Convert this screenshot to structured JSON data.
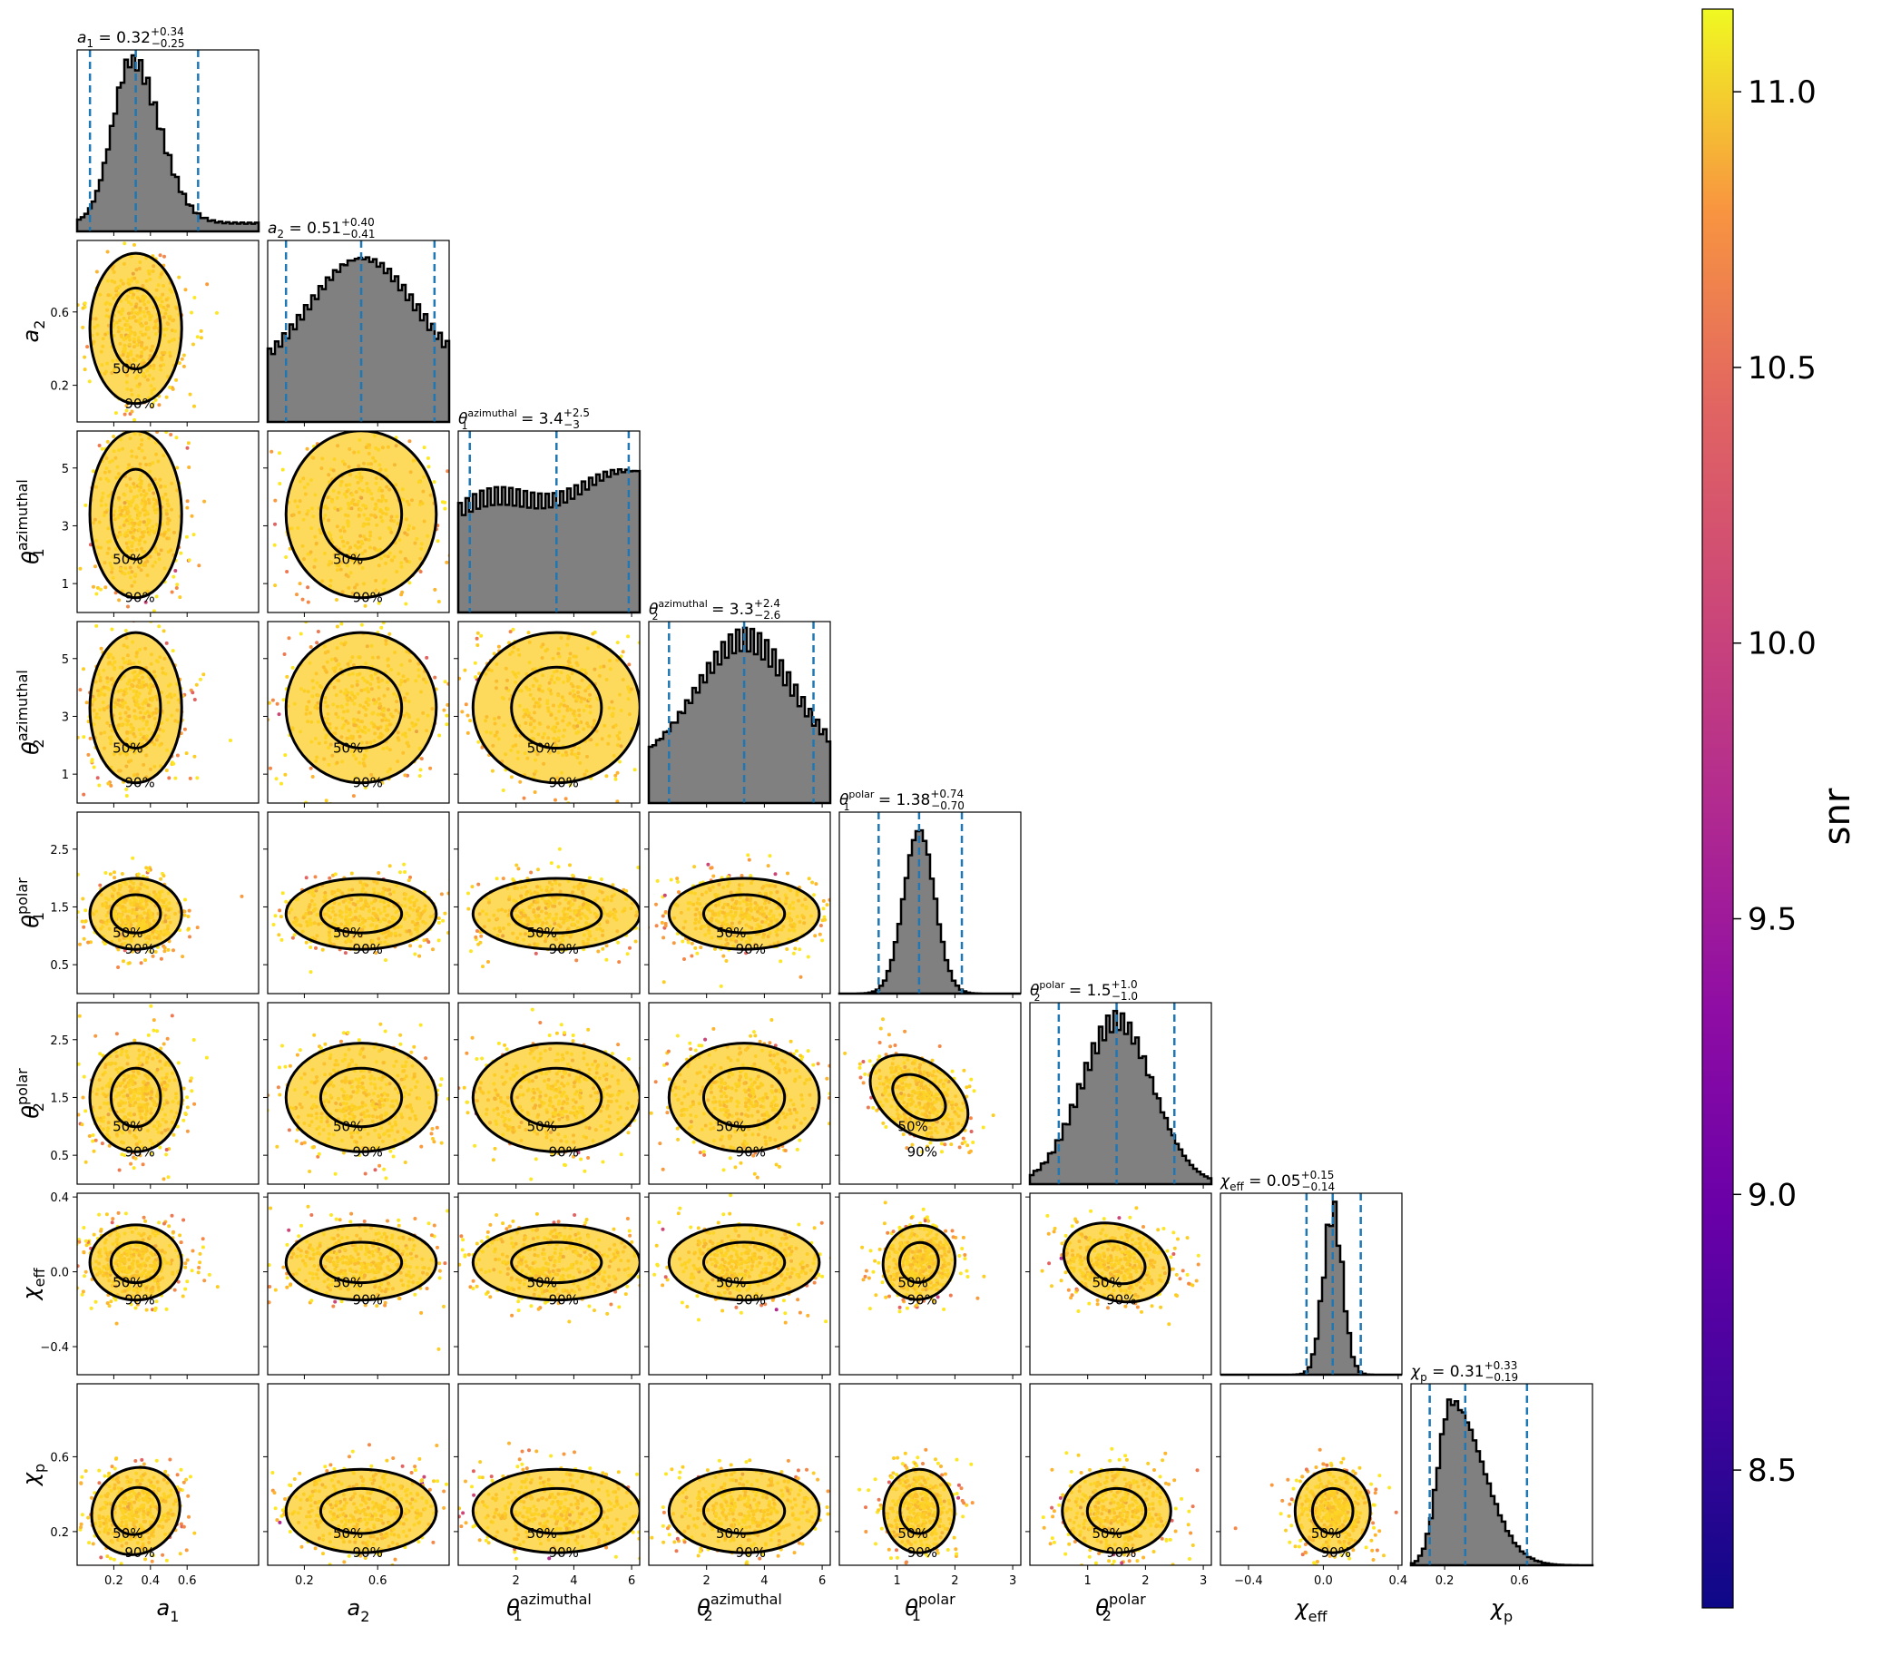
{
  "chart_data": {
    "type": "corner",
    "parameters": [
      {
        "key": "a1",
        "label": "a",
        "sub": "1",
        "sup": "",
        "title": {
          "value": "0.32",
          "up": "+0.34",
          "down": "−0.25"
        },
        "range": [
          0.0,
          0.99
        ],
        "ticks": [
          {
            "v": 0.2,
            "t": "0.2"
          },
          {
            "v": 0.4,
            "t": "0.4"
          },
          {
            "v": 0.6,
            "t": "0.6"
          }
        ],
        "shape": "skew",
        "median": 0.32,
        "lo": 0.07,
        "hi": 0.66
      },
      {
        "key": "a2",
        "label": "a",
        "sub": "2",
        "sup": "",
        "title": {
          "value": "0.51",
          "up": "+0.40",
          "down": "−0.41"
        },
        "range": [
          0.0,
          0.99
        ],
        "ticks": [
          {
            "v": 0.2,
            "t": "0.2"
          },
          {
            "v": 0.6,
            "t": "0.6"
          }
        ],
        "shape": "broad",
        "median": 0.51,
        "lo": 0.1,
        "hi": 0.91
      },
      {
        "key": "t1az",
        "label": "θ",
        "sub": "1",
        "sup": "azimuthal",
        "title": {
          "value": "3.4",
          "up": "+2.5",
          "down": "−3"
        },
        "range": [
          0.0,
          6.28
        ],
        "ticks": [
          {
            "v": 1,
            "t": "1"
          },
          {
            "v": 3,
            "t": "3"
          },
          {
            "v": 5,
            "t": "5"
          }
        ],
        "xticks": [
          {
            "v": 2,
            "t": "2"
          },
          {
            "v": 4,
            "t": "4"
          },
          {
            "v": 6,
            "t": "6"
          }
        ],
        "shape": "flat",
        "median": 3.4,
        "lo": 0.4,
        "hi": 5.9
      },
      {
        "key": "t2az",
        "label": "θ",
        "sub": "2",
        "sup": "azimuthal",
        "title": {
          "value": "3.3",
          "up": "+2.4",
          "down": "−2.6"
        },
        "range": [
          0.0,
          6.28
        ],
        "ticks": [
          {
            "v": 1,
            "t": "1"
          },
          {
            "v": 3,
            "t": "3"
          },
          {
            "v": 5,
            "t": "5"
          }
        ],
        "xticks": [
          {
            "v": 2,
            "t": "2"
          },
          {
            "v": 4,
            "t": "4"
          },
          {
            "v": 6,
            "t": "6"
          }
        ],
        "shape": "tri",
        "median": 3.3,
        "lo": 0.7,
        "hi": 5.7
      },
      {
        "key": "t1pol",
        "label": "θ",
        "sub": "1",
        "sup": "polar",
        "title": {
          "value": "1.38",
          "up": "+0.74",
          "down": "−0.70"
        },
        "range": [
          0.0,
          3.14
        ],
        "ticks": [
          {
            "v": 0.5,
            "t": "0.5"
          },
          {
            "v": 1.5,
            "t": "1.5"
          },
          {
            "v": 2.5,
            "t": "2.5"
          }
        ],
        "xticks": [
          {
            "v": 1,
            "t": "1"
          },
          {
            "v": 2,
            "t": "2"
          },
          {
            "v": 3,
            "t": "3"
          }
        ],
        "shape": "peak",
        "median": 1.38,
        "lo": 0.68,
        "hi": 2.12
      },
      {
        "key": "t2pol",
        "label": "θ",
        "sub": "2",
        "sup": "polar",
        "title": {
          "value": "1.5",
          "up": "+1.0",
          "down": "−1.0"
        },
        "range": [
          0.0,
          3.14
        ],
        "ticks": [
          {
            "v": 0.5,
            "t": "0.5"
          },
          {
            "v": 1.5,
            "t": "1.5"
          },
          {
            "v": 2.5,
            "t": "2.5"
          }
        ],
        "xticks": [
          {
            "v": 1,
            "t": "1"
          },
          {
            "v": 2,
            "t": "2"
          },
          {
            "v": 3,
            "t": "3"
          }
        ],
        "shape": "gauss",
        "median": 1.5,
        "lo": 0.5,
        "hi": 2.5
      },
      {
        "key": "chieff",
        "label": "χ",
        "sub": "eff",
        "sup": "",
        "title": {
          "value": "0.05",
          "up": "+0.15",
          "down": "−0.14"
        },
        "range": [
          -0.55,
          0.42
        ],
        "ticks": [
          {
            "v": -0.4,
            "t": "−0.4"
          },
          {
            "v": 0.0,
            "t": "0.0"
          },
          {
            "v": 0.4,
            "t": "0.4"
          }
        ],
        "shape": "narrow",
        "median": 0.05,
        "lo": -0.09,
        "hi": 0.2
      },
      {
        "key": "chip",
        "label": "χ",
        "sub": "p",
        "sup": "",
        "title": {
          "value": "0.31",
          "up": "+0.33",
          "down": "−0.19"
        },
        "range": [
          0.02,
          0.99
        ],
        "ticks": [
          {
            "v": 0.2,
            "t": "0.2"
          },
          {
            "v": 0.6,
            "t": "0.6"
          }
        ],
        "shape": "skewp",
        "median": 0.31,
        "lo": 0.12,
        "hi": 0.64
      }
    ],
    "contour_levels": [
      "50%",
      "90%"
    ],
    "colorbar": {
      "label": "snr",
      "min": 8.25,
      "max": 11.15,
      "ticks": [
        8.5,
        9.0,
        9.5,
        10.0,
        10.5,
        11.0
      ],
      "tick_labels": [
        "8.5",
        "9.0",
        "9.5",
        "10.0",
        "10.5",
        "11.0"
      ],
      "colormap": "plasma"
    },
    "colors": {
      "histogram_fill": "#808080",
      "quantile_line": "#1f77b4",
      "contour": "#000000"
    }
  }
}
